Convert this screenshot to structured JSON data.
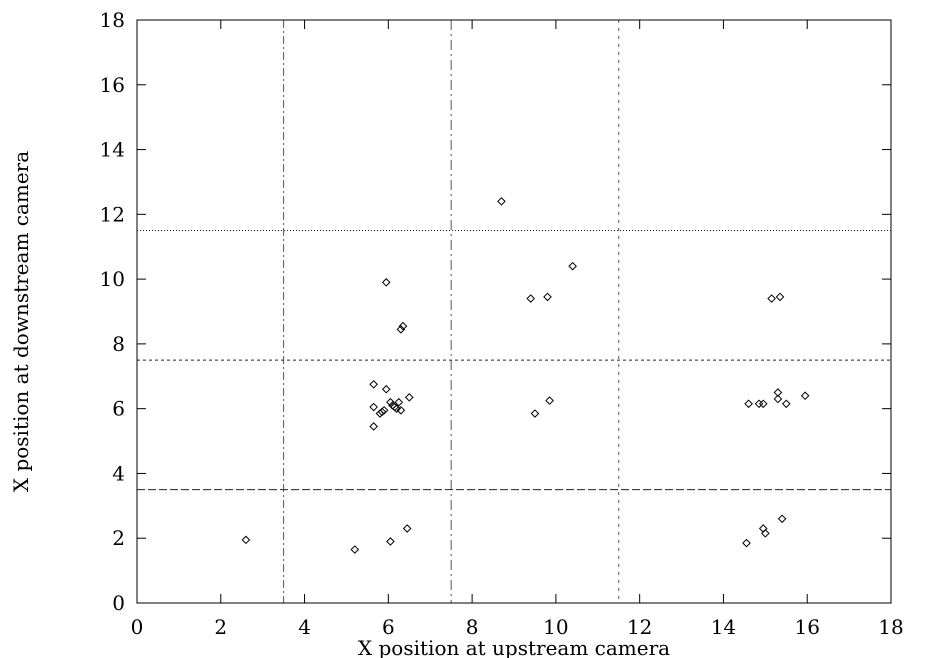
{
  "chart_data": {
    "type": "scatter",
    "xlabel": "X  position at upstream camera",
    "ylabel": "X  position at downstream camera",
    "xlim": [
      0,
      18
    ],
    "ylim": [
      0,
      18
    ],
    "xticks": [
      0,
      2,
      4,
      6,
      8,
      10,
      12,
      14,
      16,
      18
    ],
    "yticks": [
      0,
      2,
      4,
      6,
      8,
      10,
      12,
      14,
      16,
      18
    ],
    "marker": "diamond",
    "vertical_lines": [
      3.5,
      7.5,
      11.5
    ],
    "horizontal_lines": [
      3.5,
      7.5,
      11.5
    ],
    "points": [
      [
        2.6,
        1.95
      ],
      [
        5.2,
        1.65
      ],
      [
        6.05,
        1.9
      ],
      [
        6.45,
        2.3
      ],
      [
        14.55,
        1.85
      ],
      [
        14.95,
        2.3
      ],
      [
        15.0,
        2.15
      ],
      [
        15.4,
        2.6
      ],
      [
        5.65,
        5.45
      ],
      [
        5.65,
        6.05
      ],
      [
        5.65,
        6.75
      ],
      [
        5.8,
        5.85
      ],
      [
        5.85,
        5.9
      ],
      [
        5.9,
        5.95
      ],
      [
        5.95,
        6.6
      ],
      [
        6.05,
        6.2
      ],
      [
        6.1,
        6.1
      ],
      [
        6.15,
        6.05
      ],
      [
        6.2,
        6.0
      ],
      [
        6.25,
        6.2
      ],
      [
        6.3,
        5.95
      ],
      [
        6.5,
        6.35
      ],
      [
        9.5,
        5.85
      ],
      [
        9.85,
        6.25
      ],
      [
        14.6,
        6.15
      ],
      [
        14.85,
        6.15
      ],
      [
        14.95,
        6.15
      ],
      [
        15.3,
        6.3
      ],
      [
        15.3,
        6.5
      ],
      [
        15.5,
        6.15
      ],
      [
        15.95,
        6.4
      ],
      [
        5.95,
        9.9
      ],
      [
        6.3,
        8.45
      ],
      [
        6.35,
        8.55
      ],
      [
        8.7,
        12.4
      ],
      [
        9.4,
        9.4
      ],
      [
        9.8,
        9.45
      ],
      [
        10.4,
        10.4
      ],
      [
        15.15,
        9.4
      ],
      [
        15.35,
        9.45
      ]
    ]
  }
}
